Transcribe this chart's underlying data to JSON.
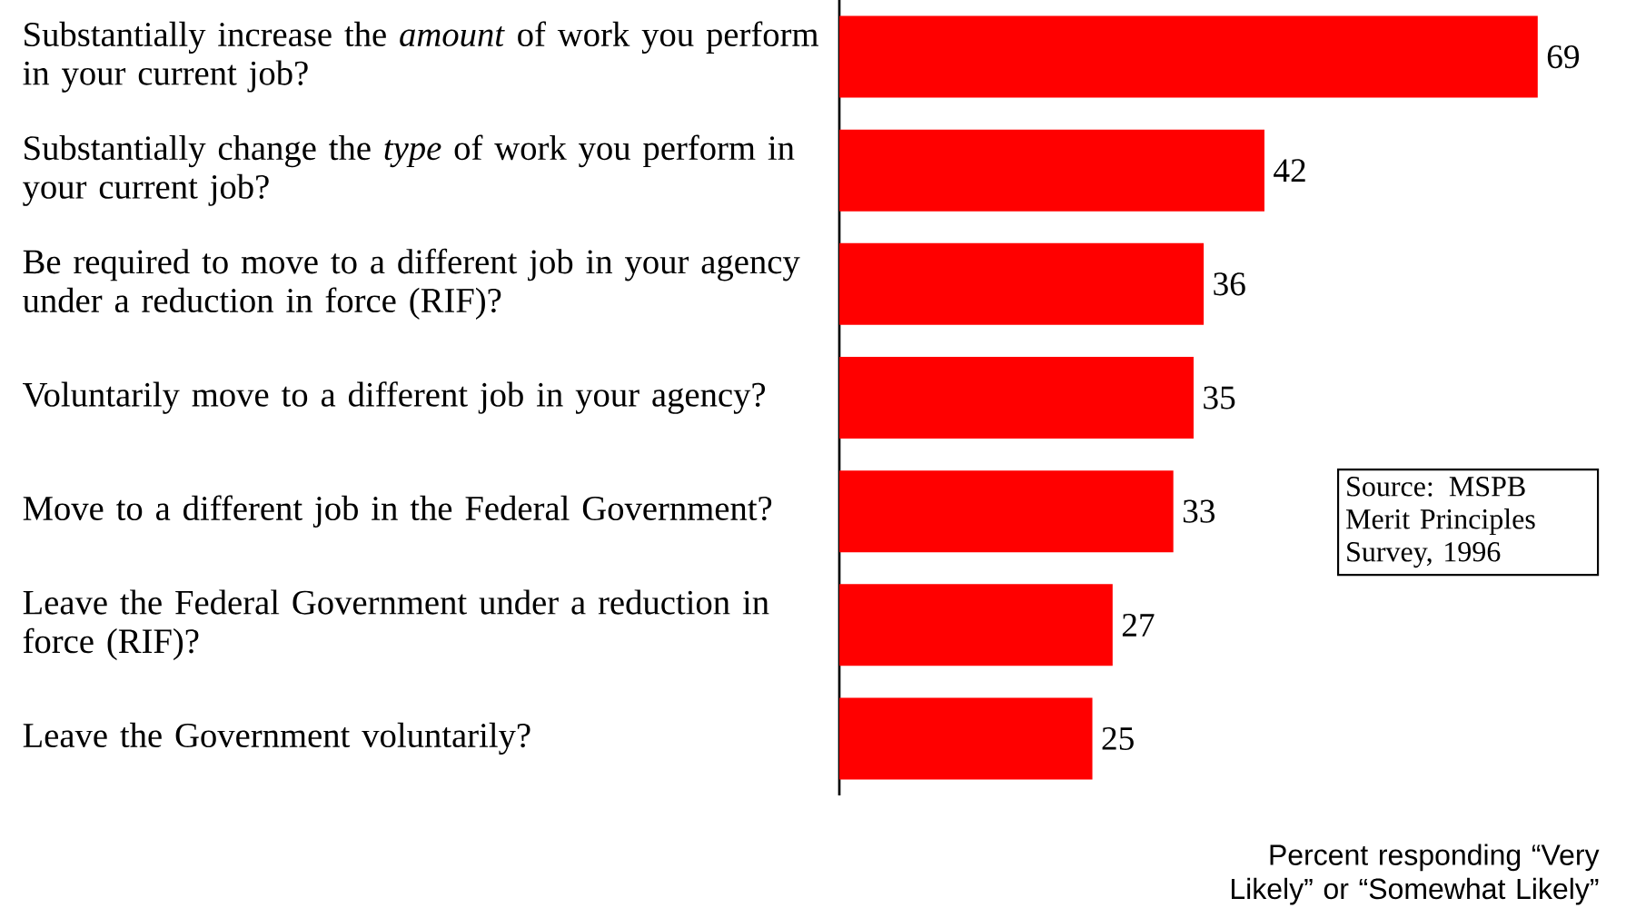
{
  "chart_data": {
    "type": "bar",
    "orientation": "horizontal",
    "categories": [
      "Substantially increase the *amount* of work you perform in your current job?",
      "Substantially change the *type* of work you perform in your current job?",
      "Be required to move to a different job in your agency under a reduction in force (RIF)?",
      "Voluntarily move to a different job in your agency?",
      "Move to a different job in the Federal Government?",
      "Leave the Federal Government under a reduction in force (RIF)?",
      "Leave the Government voluntarily?"
    ],
    "values": [
      69,
      42,
      36,
      35,
      33,
      27,
      25
    ],
    "color": "#ff0000",
    "data_labels": true,
    "xlabel": "Percent responding “Very Likely” or “Somewhat Likely”",
    "annotations": [
      "Source: MSPB Merit Principles Survey, 1996"
    ],
    "tick_labels": "y"
  }
}
